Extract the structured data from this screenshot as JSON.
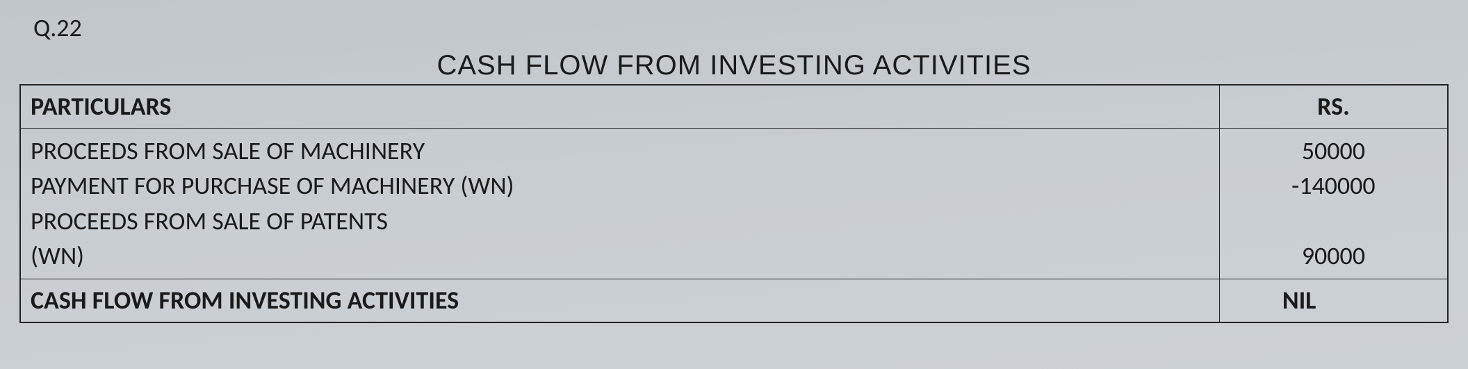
{
  "question_number": "Q.22",
  "title": "CASH FLOW FROM INVESTING ACTIVITIES",
  "table": {
    "headers": {
      "particulars": "PARTICULARS",
      "amount": "RS."
    },
    "body_lines": {
      "particulars": [
        "PROCEEDS FROM SALE OF MACHINERY",
        "PAYMENT FOR PURCHASE OF MACHINERY (WN)",
        "PROCEEDS FROM SALE OF PATENTS",
        "(WN)"
      ],
      "amounts": [
        "50000",
        "-140000",
        "",
        "90000"
      ]
    },
    "total": {
      "label": "CASH FLOW FROM INVESTING ACTIVITIES",
      "value": "NIL"
    }
  },
  "styling": {
    "background_color": "#c9ced2",
    "border_color": "#222222",
    "text_color": "#1a1a1a",
    "title_font": "Comic Sans MS",
    "body_font": "Calibri",
    "title_fontsize": 40,
    "body_fontsize": 36,
    "col_widths": [
      "84%",
      "16%"
    ]
  }
}
